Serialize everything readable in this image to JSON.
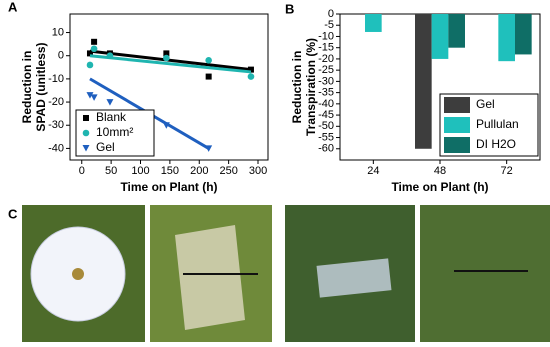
{
  "chart_data": [
    {
      "type": "scatter",
      "panel": "A",
      "xlabel": "Time on Plant (h)",
      "ylabel": [
        "Reduction in",
        "SPAD (unitless)"
      ],
      "xlim": [
        -20,
        317
      ],
      "xticks": [
        0,
        50,
        100,
        150,
        200,
        250,
        300
      ],
      "ylim": [
        -45,
        18
      ],
      "yticks": [
        10,
        0,
        -10,
        -20,
        -30,
        -40
      ],
      "legend": "lower left",
      "series": [
        {
          "name": "Blank",
          "color": "#000000",
          "marker": "square",
          "x": [
            14,
            21,
            48,
            144,
            216,
            288
          ],
          "values": [
            1,
            6,
            1,
            1,
            -9,
            -6
          ],
          "trend_x": [
            14,
            288
          ],
          "trend_values": [
            2,
            -6
          ]
        },
        {
          "name": "10mm²",
          "color": "#1fb5b0",
          "marker": "circle",
          "x": [
            14,
            21,
            48,
            144,
            216,
            288
          ],
          "values": [
            -4,
            3,
            0,
            -1,
            -2,
            -9
          ],
          "trend_x": [
            14,
            288
          ],
          "trend_values": [
            0,
            -7
          ]
        },
        {
          "name": "Gel",
          "color": "#1f5fbf",
          "marker": "triangle",
          "x": [
            14,
            21,
            48,
            144,
            216
          ],
          "values": [
            -17,
            -18,
            -20,
            -30,
            -40
          ],
          "trend_x": [
            14,
            216
          ],
          "trend_values": [
            -10,
            -40
          ]
        }
      ]
    },
    {
      "type": "bar",
      "panel": "B",
      "xlabel": "Time on Plant (h)",
      "ylabel": [
        "Reduction in",
        "Transpiration (%)"
      ],
      "categories": [
        "24",
        "48",
        "72"
      ],
      "ylim": [
        -65,
        0
      ],
      "yticks": [
        0,
        -5,
        -10,
        -15,
        -20,
        -25,
        -30,
        -35,
        -40,
        -45,
        -50,
        -55,
        -60
      ],
      "legend": "lower right",
      "series": [
        {
          "name": "Gel",
          "color": "#3d3d3d",
          "values": [
            null,
            -60,
            null
          ]
        },
        {
          "name": "Pullulan",
          "color": "#1fc0bc",
          "values": [
            -8,
            -20,
            -21
          ]
        },
        {
          "name": "DI H2O",
          "color": "#0f6e66",
          "values": [
            null,
            -15,
            -18
          ]
        }
      ]
    }
  ],
  "photo_panel": {
    "label": "C"
  }
}
